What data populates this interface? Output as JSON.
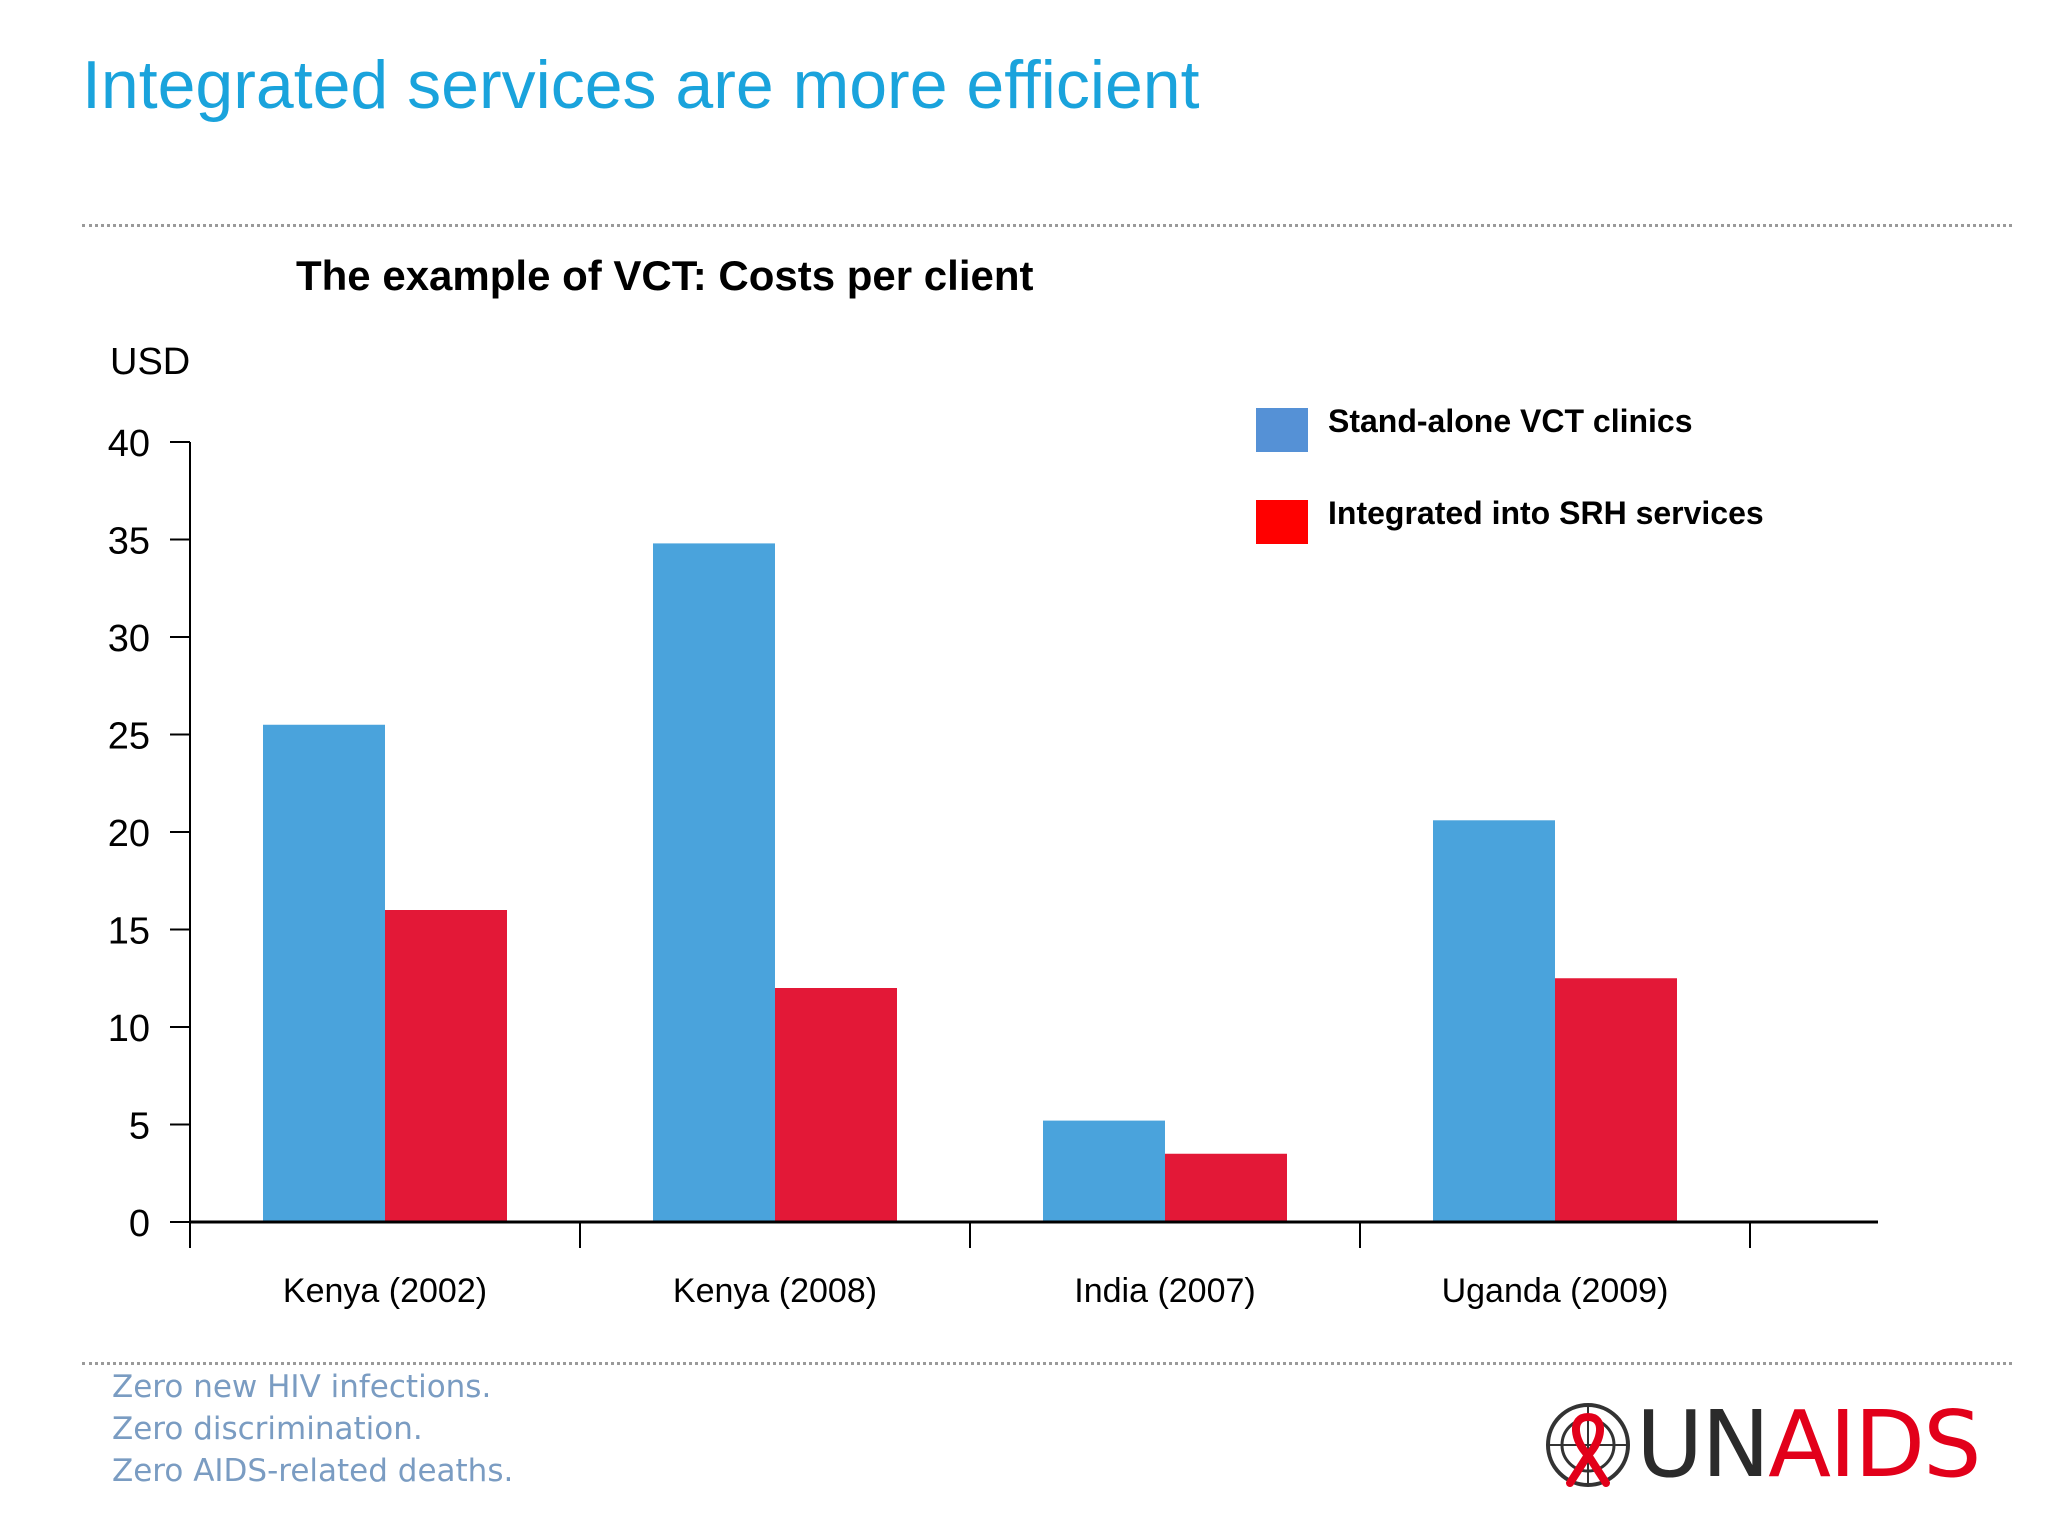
{
  "slide": {
    "title": "Integrated services are more efficient"
  },
  "footer": {
    "taglines": [
      "Zero new HIV infections.",
      "Zero discrimination.",
      "Zero AIDS-related deaths."
    ],
    "logo": {
      "prefix": "UN",
      "suffix": "AIDS",
      "prefix_color": "#2b2b2b",
      "suffix_color": "#e2001a",
      "icon": "un-emblem-ribbon-icon"
    }
  },
  "colors": {
    "title": "#1aa3dc",
    "standalone_bar": "#4aa3dc",
    "integrated_bar": "#e31837",
    "legend_standalone": "#5591d6",
    "legend_integrated": "#ff0000"
  },
  "chart_data": {
    "type": "bar",
    "title": "The example of VCT: Costs per client",
    "ylabel": "USD",
    "xlabel": "",
    "ylim": [
      0,
      40
    ],
    "yticks": [
      0,
      5,
      10,
      15,
      20,
      25,
      30,
      35,
      40
    ],
    "categories": [
      "Kenya (2002)",
      "Kenya (2008)",
      "India (2007)",
      "Uganda (2009)"
    ],
    "series": [
      {
        "name": "Stand-alone VCT clinics",
        "values": [
          25.5,
          34.8,
          5.2,
          20.6
        ]
      },
      {
        "name": "Integrated into SRH services",
        "values": [
          16.0,
          12.0,
          3.5,
          12.5
        ]
      }
    ],
    "legend_position": "top-right",
    "grid": false
  }
}
